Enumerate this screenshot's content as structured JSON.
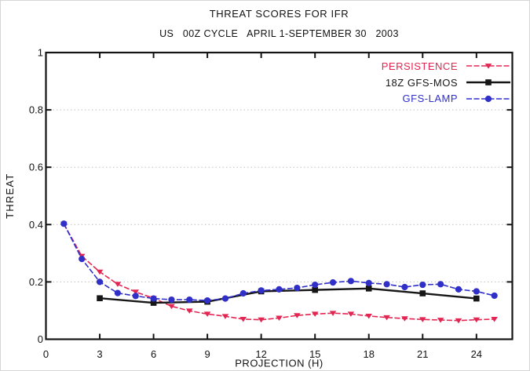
{
  "chart_data": {
    "type": "line",
    "title": "THREAT SCORES FOR IFR",
    "subtitle": "US   00Z CYCLE   APRIL 1-SEPTEMBER 30   2003",
    "xlabel": "PROJECTION (H)",
    "ylabel": "THREAT",
    "xlim": [
      0,
      26
    ],
    "ylim": [
      0,
      1
    ],
    "xticks": [
      0,
      3,
      6,
      9,
      12,
      15,
      18,
      21,
      24
    ],
    "yticks": [
      0,
      0.2,
      0.4,
      0.6,
      0.8,
      1
    ],
    "ytick_labels": [
      "0",
      "0.2",
      "0.4",
      "0.6",
      "0.8",
      "1"
    ],
    "grid": {
      "horizontal": true,
      "vertical": false,
      "style": "dotted",
      "color": "#bfbfbf"
    },
    "legend_position": "top-right-inside",
    "axis_color": "#141414",
    "series": [
      {
        "name": "PERSISTENCE",
        "color": "#e32552",
        "marker": "triangle-down",
        "line_dash": "dashed",
        "x": [
          1,
          2,
          3,
          4,
          5,
          6,
          7,
          8,
          9,
          10,
          11,
          12,
          13,
          14,
          15,
          16,
          17,
          18,
          19,
          20,
          21,
          22,
          23,
          24,
          25
        ],
        "y": [
          0.402,
          0.29,
          0.235,
          0.192,
          0.165,
          0.143,
          0.115,
          0.099,
          0.088,
          0.08,
          0.07,
          0.068,
          0.074,
          0.083,
          0.088,
          0.091,
          0.088,
          0.081,
          0.076,
          0.072,
          0.069,
          0.067,
          0.065,
          0.068,
          0.07
        ]
      },
      {
        "name": "18Z GFS-MOS",
        "color": "#161616",
        "marker": "square",
        "line_dash": "solid",
        "x": [
          3,
          6,
          9,
          12,
          15,
          18,
          21,
          24
        ],
        "y": [
          0.143,
          0.127,
          0.131,
          0.167,
          0.172,
          0.177,
          0.16,
          0.142
        ]
      },
      {
        "name": "GFS-LAMP",
        "color": "#3030c8",
        "marker": "circle",
        "line_dash": "dashed",
        "x": [
          1,
          2,
          3,
          4,
          5,
          6,
          7,
          8,
          9,
          10,
          11,
          12,
          13,
          14,
          15,
          16,
          17,
          18,
          19,
          20,
          21,
          22,
          23,
          24,
          25
        ],
        "y": [
          0.403,
          0.28,
          0.2,
          0.161,
          0.151,
          0.142,
          0.138,
          0.138,
          0.135,
          0.142,
          0.16,
          0.17,
          0.174,
          0.179,
          0.19,
          0.198,
          0.203,
          0.196,
          0.192,
          0.182,
          0.19,
          0.192,
          0.174,
          0.167,
          0.152
        ]
      }
    ]
  }
}
